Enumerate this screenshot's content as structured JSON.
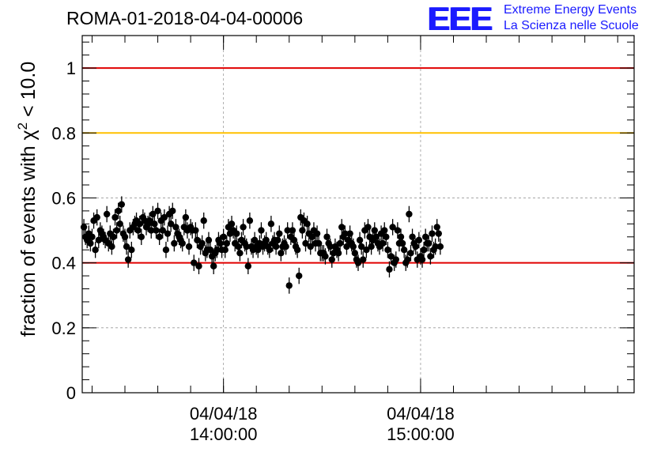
{
  "header": {
    "run_title": "ROMA-01-2018-04-04-00006",
    "logo_mark": "EEE",
    "logo_line1": "Extreme Energy Events",
    "logo_line2": "La Scienza nelle Scuole"
  },
  "colors": {
    "upper_limit": "#e00000",
    "warning": "#ffc000",
    "lower_limit": "#e00000",
    "markers": "#000000",
    "logo": "#1a1aff"
  },
  "chart_data": {
    "type": "scatter",
    "ylabel": "fraction of events with χ² < 10.0",
    "ylabel_parts": {
      "prefix": "fraction of events with ",
      "symbol": "χ",
      "superscript": "2",
      "suffix": " < 10.0"
    },
    "ylim": [
      0,
      1.1
    ],
    "yticks": [
      0,
      0.2,
      0.4,
      0.6,
      0.8,
      1
    ],
    "ytick_labels": [
      "0",
      "0.2",
      "0.4",
      "0.6",
      "0.8",
      "1"
    ],
    "xlim": [
      "04/04/18 13:17:00",
      "04/04/18 16:05:00"
    ],
    "xticks": [
      "04/04/18 14:00:00",
      "04/04/18 15:00:00"
    ],
    "xtick_labels": [
      {
        "date": "04/04/18",
        "time": "14:00:00"
      },
      {
        "date": "04/04/18",
        "time": "15:00:00"
      }
    ],
    "grid": true,
    "reference_lines": [
      {
        "y": 1.0,
        "color": "#e00000"
      },
      {
        "y": 0.8,
        "color": "#ffc000"
      },
      {
        "y": 0.4,
        "color": "#e00000"
      }
    ],
    "error_bar": 0.025,
    "series": [
      {
        "x_start": "04/04/18 13:17:30",
        "x_step_seconds": 30,
        "values": [
          0.51,
          0.48,
          0.47,
          0.49,
          0.46,
          0.48,
          0.53,
          0.44,
          0.54,
          0.47,
          0.5,
          0.49,
          0.48,
          0.47,
          0.55,
          0.46,
          0.49,
          0.45,
          0.48,
          0.54,
          0.5,
          0.56,
          0.52,
          0.58,
          0.49,
          0.48,
          0.45,
          0.41,
          0.5,
          0.44,
          0.51,
          0.52,
          0.53,
          0.5,
          0.52,
          0.48,
          0.54,
          0.53,
          0.51,
          0.52,
          0.53,
          0.5,
          0.55,
          0.52,
          0.5,
          0.56,
          0.48,
          0.53,
          0.5,
          0.54,
          0.44,
          0.49,
          0.55,
          0.52,
          0.56,
          0.46,
          0.51,
          0.49,
          0.48,
          0.47,
          0.46,
          0.51,
          0.54,
          0.5,
          0.45,
          0.51,
          0.5,
          0.4,
          0.5,
          0.47,
          0.39,
          0.45,
          0.46,
          0.53,
          0.43,
          0.44,
          0.47,
          0.44,
          0.42,
          0.39,
          0.43,
          0.44,
          0.47,
          0.46,
          0.44,
          0.48,
          0.44,
          0.46,
          0.51,
          0.49,
          0.52,
          0.5,
          0.46,
          0.49,
          0.45,
          0.43,
          0.47,
          0.51,
          0.46,
          0.45,
          0.39,
          0.53,
          0.45,
          0.44,
          0.47,
          0.45,
          0.44,
          0.46,
          0.5,
          0.45,
          0.46,
          0.47,
          0.45,
          0.44,
          0.52,
          0.46,
          0.47,
          0.45,
          0.47,
          0.49,
          0.43,
          0.45,
          0.46,
          0.45,
          0.5,
          0.33,
          0.48,
          0.5,
          0.47,
          0.45,
          0.44,
          0.36,
          0.54,
          0.5,
          0.53,
          0.46,
          0.52,
          0.49,
          0.45,
          0.48,
          0.5,
          0.46,
          0.49,
          0.46,
          0.43,
          0.43,
          0.43,
          0.42,
          0.48,
          0.46,
          0.45,
          0.41,
          0.43,
          0.45,
          0.44,
          0.43,
          0.46,
          0.51,
          0.48,
          0.49,
          0.45,
          0.47,
          0.49,
          0.46,
          0.45,
          0.43,
          0.41,
          0.4,
          0.47,
          0.45,
          0.41,
          0.5,
          0.44,
          0.51,
          0.48,
          0.45,
          0.47,
          0.5,
          0.48,
          0.46,
          0.45,
          0.49,
          0.46,
          0.5,
          0.48,
          0.44,
          0.38,
          0.42,
          0.51,
          0.4,
          0.41,
          0.5,
          0.46,
          0.48,
          0.46,
          0.44,
          0.4,
          0.41,
          0.55,
          0.43,
          0.48,
          0.46,
          0.45,
          0.41,
          0.47,
          0.42,
          0.41,
          0.44,
          0.48,
          0.46,
          0.46,
          0.42,
          0.49,
          0.44,
          0.45,
          0.51,
          0.49,
          0.45
        ]
      }
    ]
  }
}
